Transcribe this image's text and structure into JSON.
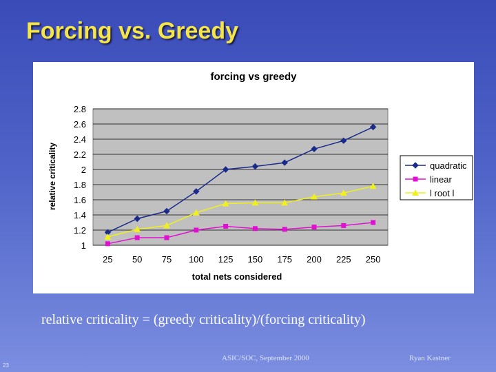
{
  "slide": {
    "title": "Forcing vs. Greedy",
    "caption": "relative criticality = (greedy criticality)/(forcing criticality)",
    "footer_conference": "ASIC/SOC, September 2000",
    "footer_author": "Ryan Kastner",
    "page_number": "23"
  },
  "chart_data": {
    "type": "line",
    "title": "forcing vs greedy",
    "xlabel": "total nets considered",
    "ylabel": "relative criticality",
    "categories": [
      "25",
      "50",
      "75",
      "100",
      "125",
      "150",
      "175",
      "200",
      "225",
      "250"
    ],
    "ylim": [
      1,
      2.8
    ],
    "yticks": [
      "2.8",
      "2.6",
      "2.4",
      "2.2",
      "2",
      "1.8",
      "1.6",
      "1.4",
      "1.2",
      "1"
    ],
    "grid": true,
    "legend_position": "right",
    "series": [
      {
        "name": "quadratic",
        "marker": "diamond",
        "color": "#1a2a8a",
        "values": [
          1.17,
          1.35,
          1.45,
          1.71,
          2.0,
          2.04,
          2.09,
          2.27,
          2.38,
          2.56
        ]
      },
      {
        "name": "linear",
        "marker": "square",
        "color": "#e010d0",
        "values": [
          1.02,
          1.1,
          1.1,
          1.2,
          1.25,
          1.22,
          1.21,
          1.24,
          1.26,
          1.3
        ]
      },
      {
        "name": "l root l",
        "marker": "triangle",
        "color": "#f0f020",
        "values": [
          1.11,
          1.21,
          1.26,
          1.43,
          1.55,
          1.56,
          1.56,
          1.64,
          1.69,
          1.78
        ]
      }
    ]
  }
}
